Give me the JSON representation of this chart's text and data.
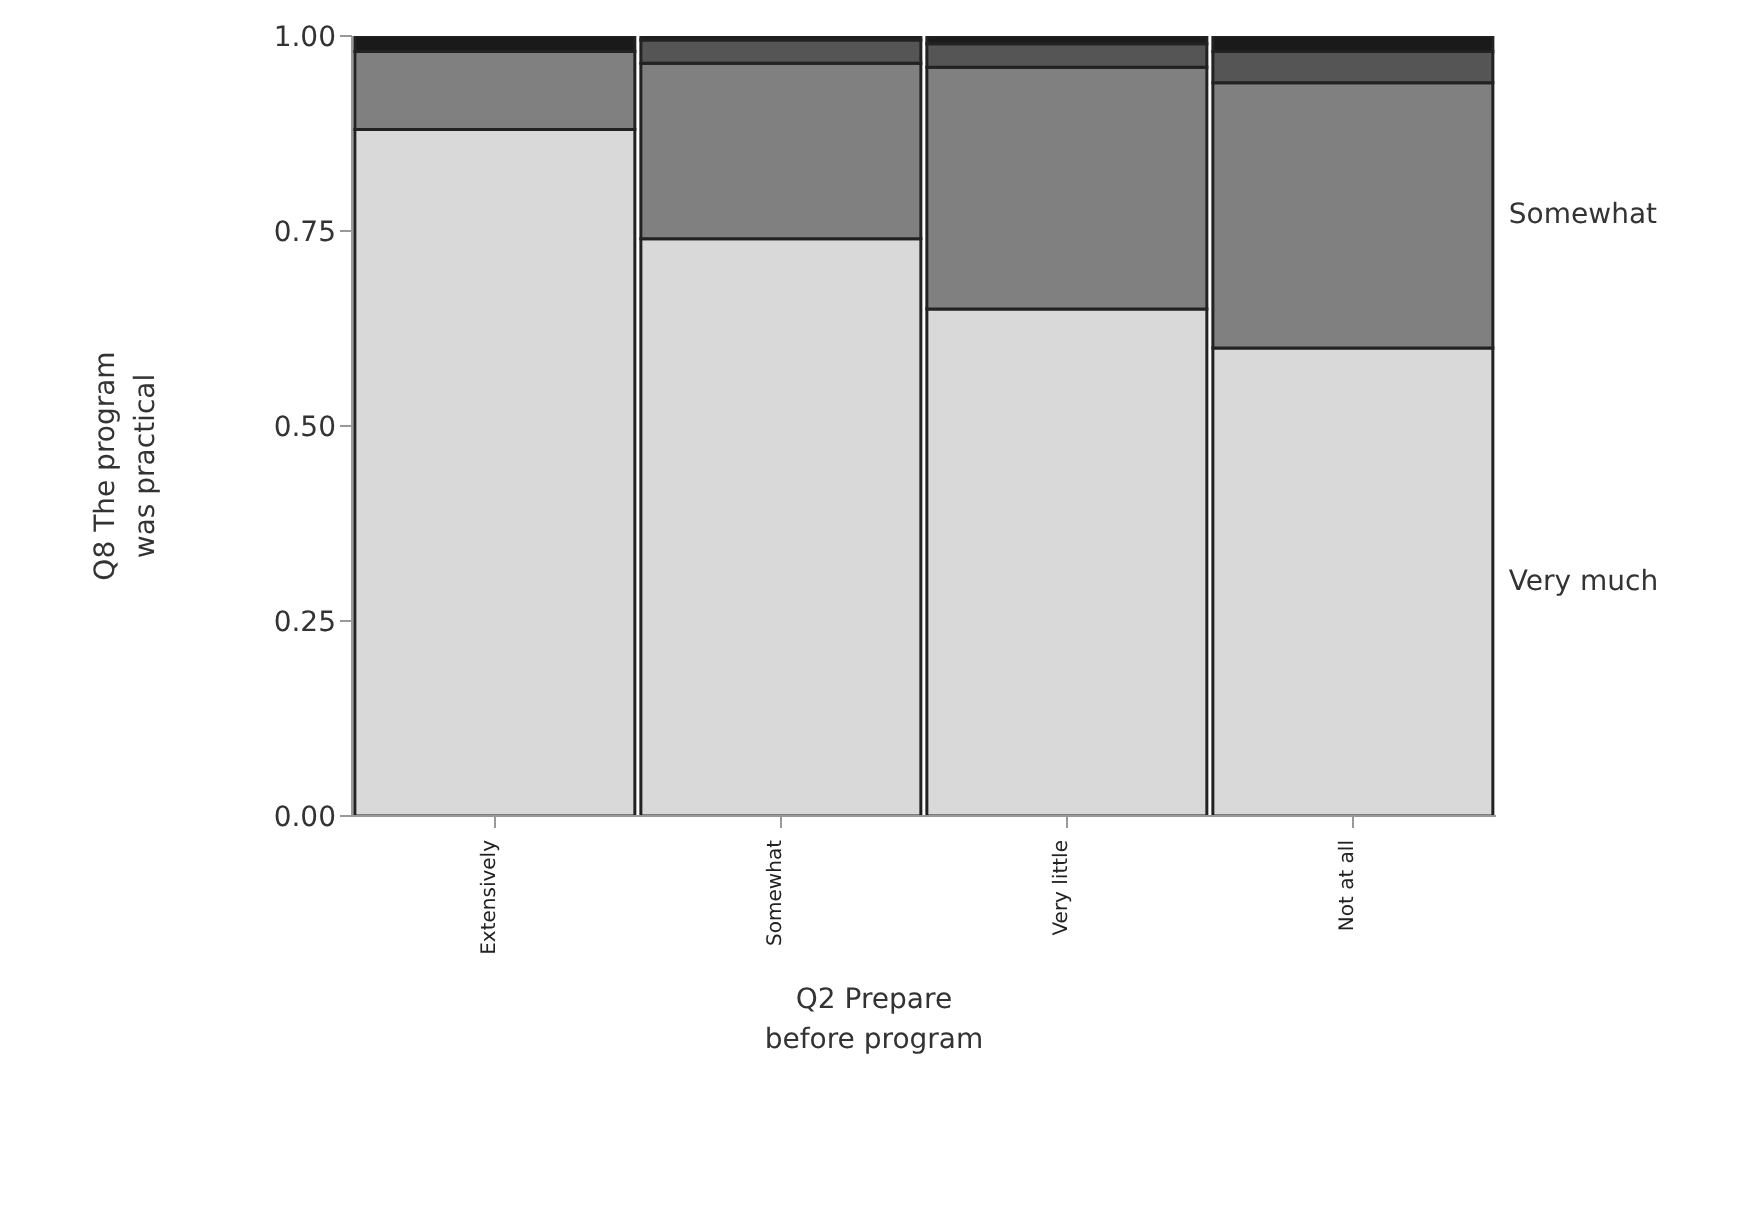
{
  "chart_data": {
    "type": "bar",
    "stacked": true,
    "xlabel": "Q2 Prepare\nbefore program",
    "ylabel": "Q8 The program\nwas practical",
    "categories": [
      "Extensively",
      "Somewhat",
      "Very little",
      "Not at all"
    ],
    "series": [
      {
        "name": "Very much",
        "color": "#d9d9d9",
        "values": [
          0.88,
          0.74,
          0.65,
          0.6
        ]
      },
      {
        "name": "Somewhat",
        "color": "#808080",
        "values": [
          0.1,
          0.225,
          0.31,
          0.34
        ]
      },
      {
        "color": "#555555",
        "values": [
          0,
          0.03,
          0.03,
          0.04
        ]
      },
      {
        "color": "#1a1a1a",
        "values": [
          0.02,
          0.005,
          0.01,
          0.02
        ]
      }
    ],
    "ylim": [
      0,
      1
    ],
    "yticks": [
      {
        "value": 0,
        "label": "0.00"
      },
      {
        "value": 0.25,
        "label": "0.25"
      },
      {
        "value": 0.5,
        "label": "0.50"
      },
      {
        "value": 0.75,
        "label": "0.75"
      },
      {
        "value": 1,
        "label": "1.00"
      }
    ],
    "grid": false
  }
}
